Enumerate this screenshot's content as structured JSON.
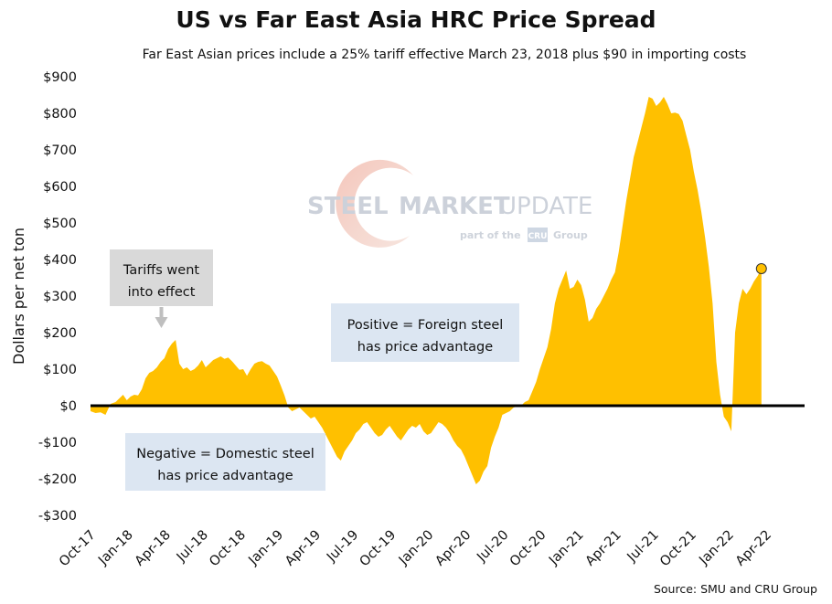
{
  "chart_data": {
    "type": "area",
    "title": "US vs Far East Asia HRC Price Spread",
    "subtitle": "Far East Asian prices include a 25% tariff effective March 23, 2018 plus $90 in importing costs",
    "xlabel": "",
    "ylabel": "Dollars per net ton",
    "ylim": [
      -300,
      900
    ],
    "y_ticks": [
      -300,
      -200,
      -100,
      0,
      100,
      200,
      300,
      400,
      500,
      600,
      700,
      800,
      900
    ],
    "y_tick_labels": [
      "-$300",
      "-$200",
      "-$100",
      "$0",
      "$100",
      "$200",
      "$300",
      "$400",
      "$500",
      "$600",
      "$700",
      "$800",
      "$900"
    ],
    "x_tick_labels": [
      "Oct-17",
      "Jan-18",
      "Apr-18",
      "Jul-18",
      "Oct-18",
      "Jan-19",
      "Apr-19",
      "Jul-19",
      "Oct-19",
      "Jan-20",
      "Apr-20",
      "Jul-20",
      "Oct-20",
      "Jan-21",
      "Apr-21",
      "Jul-21",
      "Oct-21",
      "Jan-22",
      "Apr-22"
    ],
    "x_start": "Oct-17",
    "period_unit": "months",
    "series": [
      {
        "name": "US vs Far East Asia HRC price spread",
        "color": "#ffc000",
        "points": [
          [
            0,
            -15
          ],
          [
            0.4,
            -20
          ],
          [
            0.8,
            -18
          ],
          [
            1.2,
            -25
          ],
          [
            1.6,
            5
          ],
          [
            2,
            10
          ],
          [
            2.3,
            20
          ],
          [
            2.6,
            30
          ],
          [
            2.9,
            15
          ],
          [
            3.2,
            25
          ],
          [
            3.5,
            30
          ],
          [
            3.8,
            28
          ],
          [
            4.1,
            45
          ],
          [
            4.4,
            75
          ],
          [
            4.7,
            90
          ],
          [
            5,
            95
          ],
          [
            5.3,
            105
          ],
          [
            5.6,
            120
          ],
          [
            5.9,
            130
          ],
          [
            6.2,
            155
          ],
          [
            6.5,
            170
          ],
          [
            6.8,
            180
          ],
          [
            7.1,
            115
          ],
          [
            7.4,
            100
          ],
          [
            7.7,
            105
          ],
          [
            8,
            95
          ],
          [
            8.3,
            100
          ],
          [
            8.6,
            110
          ],
          [
            8.9,
            125
          ],
          [
            9.2,
            105
          ],
          [
            9.5,
            115
          ],
          [
            9.8,
            125
          ],
          [
            10.1,
            130
          ],
          [
            10.4,
            135
          ],
          [
            10.7,
            128
          ],
          [
            11,
            132
          ],
          [
            11.3,
            122
          ],
          [
            11.6,
            110
          ],
          [
            11.9,
            98
          ],
          [
            12.2,
            100
          ],
          [
            12.5,
            82
          ],
          [
            12.8,
            100
          ],
          [
            13.1,
            115
          ],
          [
            13.4,
            120
          ],
          [
            13.7,
            122
          ],
          [
            14,
            115
          ],
          [
            14.3,
            110
          ],
          [
            14.6,
            95
          ],
          [
            14.9,
            80
          ],
          [
            15.2,
            55
          ],
          [
            15.5,
            28
          ],
          [
            15.8,
            -5
          ],
          [
            16.1,
            -15
          ],
          [
            16.4,
            -10
          ],
          [
            16.7,
            -5
          ],
          [
            17,
            -15
          ],
          [
            17.3,
            -25
          ],
          [
            17.6,
            -35
          ],
          [
            17.9,
            -30
          ],
          [
            18.2,
            -45
          ],
          [
            18.5,
            -60
          ],
          [
            18.8,
            -80
          ],
          [
            19.1,
            -100
          ],
          [
            19.4,
            -120
          ],
          [
            19.7,
            -140
          ],
          [
            20,
            -150
          ],
          [
            20.3,
            -125
          ],
          [
            20.6,
            -110
          ],
          [
            20.9,
            -95
          ],
          [
            21.2,
            -75
          ],
          [
            21.5,
            -65
          ],
          [
            21.8,
            -50
          ],
          [
            22.1,
            -45
          ],
          [
            22.4,
            -60
          ],
          [
            22.7,
            -75
          ],
          [
            23,
            -85
          ],
          [
            23.3,
            -80
          ],
          [
            23.6,
            -65
          ],
          [
            23.9,
            -55
          ],
          [
            24.2,
            -70
          ],
          [
            24.5,
            -85
          ],
          [
            24.8,
            -95
          ],
          [
            25.1,
            -80
          ],
          [
            25.4,
            -65
          ],
          [
            25.7,
            -55
          ],
          [
            26,
            -60
          ],
          [
            26.3,
            -50
          ],
          [
            26.6,
            -70
          ],
          [
            26.9,
            -80
          ],
          [
            27.2,
            -75
          ],
          [
            27.5,
            -60
          ],
          [
            27.8,
            -45
          ],
          [
            28.1,
            -50
          ],
          [
            28.4,
            -60
          ],
          [
            28.7,
            -75
          ],
          [
            29,
            -95
          ],
          [
            29.3,
            -110
          ],
          [
            29.6,
            -120
          ],
          [
            29.9,
            -140
          ],
          [
            30.2,
            -165
          ],
          [
            30.5,
            -190
          ],
          [
            30.8,
            -215
          ],
          [
            31.1,
            -205
          ],
          [
            31.4,
            -180
          ],
          [
            31.7,
            -165
          ],
          [
            32,
            -115
          ],
          [
            32.3,
            -85
          ],
          [
            32.6,
            -60
          ],
          [
            32.9,
            -25
          ],
          [
            33.2,
            -20
          ],
          [
            33.5,
            -15
          ],
          [
            33.8,
            -5
          ],
          [
            34.1,
            -2
          ],
          [
            34.4,
            0
          ],
          [
            34.7,
            10
          ],
          [
            35,
            15
          ],
          [
            35.3,
            40
          ],
          [
            35.6,
            65
          ],
          [
            35.9,
            100
          ],
          [
            36.2,
            130
          ],
          [
            36.5,
            160
          ],
          [
            36.8,
            210
          ],
          [
            37.1,
            280
          ],
          [
            37.4,
            320
          ],
          [
            37.7,
            345
          ],
          [
            38,
            370
          ],
          [
            38.3,
            320
          ],
          [
            38.6,
            325
          ],
          [
            38.9,
            345
          ],
          [
            39.2,
            330
          ],
          [
            39.5,
            290
          ],
          [
            39.8,
            230
          ],
          [
            40.1,
            240
          ],
          [
            40.4,
            265
          ],
          [
            40.7,
            280
          ],
          [
            41,
            300
          ],
          [
            41.3,
            320
          ],
          [
            41.6,
            345
          ],
          [
            41.9,
            365
          ],
          [
            42.2,
            420
          ],
          [
            42.5,
            490
          ],
          [
            42.8,
            560
          ],
          [
            43.1,
            620
          ],
          [
            43.4,
            680
          ],
          [
            43.7,
            720
          ],
          [
            44,
            760
          ],
          [
            44.3,
            800
          ],
          [
            44.6,
            845
          ],
          [
            44.9,
            840
          ],
          [
            45.2,
            820
          ],
          [
            45.5,
            830
          ],
          [
            45.8,
            845
          ],
          [
            46.1,
            825
          ],
          [
            46.4,
            800
          ],
          [
            46.7,
            802
          ],
          [
            47,
            798
          ],
          [
            47.3,
            780
          ],
          [
            47.6,
            740
          ],
          [
            47.9,
            700
          ],
          [
            48.2,
            640
          ],
          [
            48.5,
            590
          ],
          [
            48.8,
            530
          ],
          [
            49.1,
            460
          ],
          [
            49.4,
            380
          ],
          [
            49.7,
            280
          ],
          [
            50,
            120
          ],
          [
            50.3,
            30
          ],
          [
            50.6,
            -30
          ],
          [
            50.9,
            -45
          ],
          [
            51.2,
            -70
          ],
          [
            51.5,
            200
          ],
          [
            51.8,
            280
          ],
          [
            52.1,
            320
          ],
          [
            52.4,
            305
          ],
          [
            52.7,
            320
          ],
          [
            53,
            340
          ],
          [
            53.3,
            355
          ],
          [
            53.6,
            375
          ]
        ],
        "last_point_marker": [
          53.6,
          375
        ]
      }
    ],
    "annotations": [
      {
        "id": "tariff",
        "lines": [
          "Tariffs went",
          "into effect"
        ],
        "points_to": [
          6.8,
          190
        ]
      },
      {
        "id": "positive",
        "lines": [
          "Positive = Foreign steel",
          "has price advantage"
        ]
      },
      {
        "id": "negative",
        "lines": [
          "Negative = Domestic steel",
          "has price advantage"
        ]
      }
    ],
    "source": "Source: SMU and CRU Group",
    "legend": "none",
    "grid": false
  },
  "watermark": {
    "brand_steel": "STEEL",
    "brand_market": "MARKET",
    "brand_update": "UPDATE",
    "tagline_prefix": "part of the",
    "tagline_logo": "CRU",
    "tagline_suffix": "Group"
  },
  "colors": {
    "area": "#ffc000",
    "zero_line": "#000000",
    "annotation_gray": "#d9d9d9",
    "annotation_blue": "#dce6f2",
    "marker": "#ffc000"
  }
}
